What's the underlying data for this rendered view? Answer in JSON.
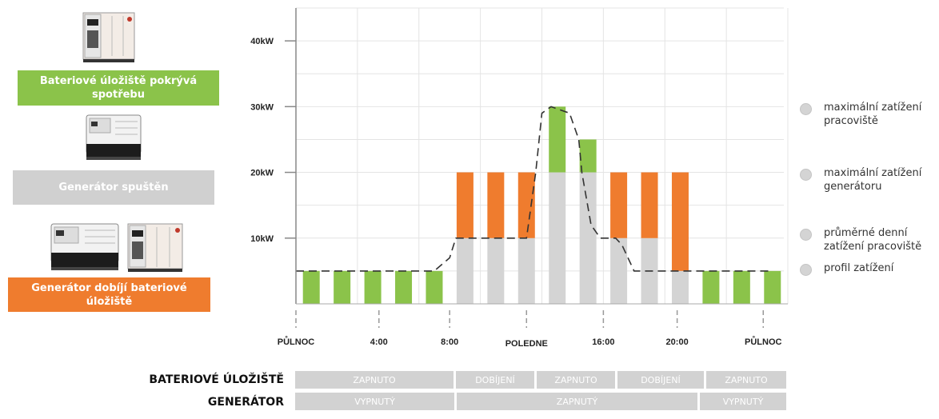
{
  "left_panel": {
    "box1": {
      "label": "Bateriové úložiště pokrývá spotřebu",
      "color": "#8bc34a"
    },
    "box2": {
      "label": "Generátor spuštěn",
      "color": "#d0d0d0"
    },
    "box3": {
      "label": "Generátor dobíjí bateriové úložiště",
      "color": "#ef7c2e"
    }
  },
  "legend": [
    {
      "label": "maximální zatížení pracoviště"
    },
    {
      "label": "maximální zatížení generátoru"
    },
    {
      "label": "průměrné denní zatížení pracoviště"
    },
    {
      "label": "profil zatížení"
    }
  ],
  "chart_data": {
    "type": "bar",
    "stacked": true,
    "ylim": [
      0,
      45
    ],
    "y_ticks": [
      {
        "value": 10,
        "label": "10kW"
      },
      {
        "value": 20,
        "label": "20kW"
      },
      {
        "value": 30,
        "label": "30kW"
      },
      {
        "value": 40,
        "label": "40kW"
      }
    ],
    "x_ticks": [
      {
        "label": "PŮLNOC"
      },
      {
        "label": "4:00"
      },
      {
        "label": "8:00"
      },
      {
        "label": "POLEDNE"
      },
      {
        "label": "16:00"
      },
      {
        "label": "20:00"
      },
      {
        "label": "PŮLNOC"
      }
    ],
    "colors": {
      "grey": "#d4d4d4",
      "green": "#8bc34a",
      "orange": "#ef7c2e",
      "line": "#333333"
    },
    "bars": [
      {
        "grey": 0,
        "green": 5,
        "orange": 0
      },
      {
        "grey": 0,
        "green": 5,
        "orange": 0
      },
      {
        "grey": 0,
        "green": 5,
        "orange": 0
      },
      {
        "grey": 0,
        "green": 5,
        "orange": 0
      },
      {
        "grey": 0,
        "green": 5,
        "orange": 0
      },
      {
        "grey": 10,
        "green": 0,
        "orange": 10
      },
      {
        "grey": 10,
        "green": 0,
        "orange": 10
      },
      {
        "grey": 10,
        "green": 0,
        "orange": 10
      },
      {
        "grey": 20,
        "green": 10,
        "orange": 0
      },
      {
        "grey": 20,
        "green": 5,
        "orange": 0
      },
      {
        "grey": 10,
        "green": 0,
        "orange": 10
      },
      {
        "grey": 10,
        "green": 0,
        "orange": 10
      },
      {
        "grey": 5,
        "green": 0,
        "orange": 15
      },
      {
        "grey": 0,
        "green": 5,
        "orange": 0
      },
      {
        "grey": 0,
        "green": 5,
        "orange": 0
      },
      {
        "grey": 0,
        "green": 5,
        "orange": 0
      }
    ],
    "load_profile_points": [
      [
        0,
        5
      ],
      [
        4.5,
        5
      ],
      [
        5,
        7
      ],
      [
        5.2,
        10
      ],
      [
        7.5,
        10
      ],
      [
        7.8,
        20
      ],
      [
        8,
        29
      ],
      [
        8.3,
        30
      ],
      [
        8.9,
        29
      ],
      [
        9.2,
        25
      ],
      [
        9.3,
        20
      ],
      [
        9.6,
        12
      ],
      [
        9.9,
        10
      ],
      [
        10.4,
        10
      ],
      [
        10.6,
        9
      ],
      [
        11,
        5
      ],
      [
        15.5,
        5
      ]
    ]
  },
  "schedule": {
    "battery": {
      "label": "BATERIOVÉ ÚLOŽIŠTĚ",
      "segments": [
        {
          "label": "ZAPNUTO"
        },
        {
          "label": "DOBÍJENÍ"
        },
        {
          "label": "ZAPNUTO"
        },
        {
          "label": "DOBÍJENÍ"
        },
        {
          "label": "ZAPNUTO"
        }
      ]
    },
    "generator": {
      "label": "GENERÁTOR",
      "segments": [
        {
          "label": "VYPNUTÝ"
        },
        {
          "label": "ZAPNUTÝ"
        },
        {
          "label": "VYPNUTÝ"
        }
      ]
    }
  }
}
